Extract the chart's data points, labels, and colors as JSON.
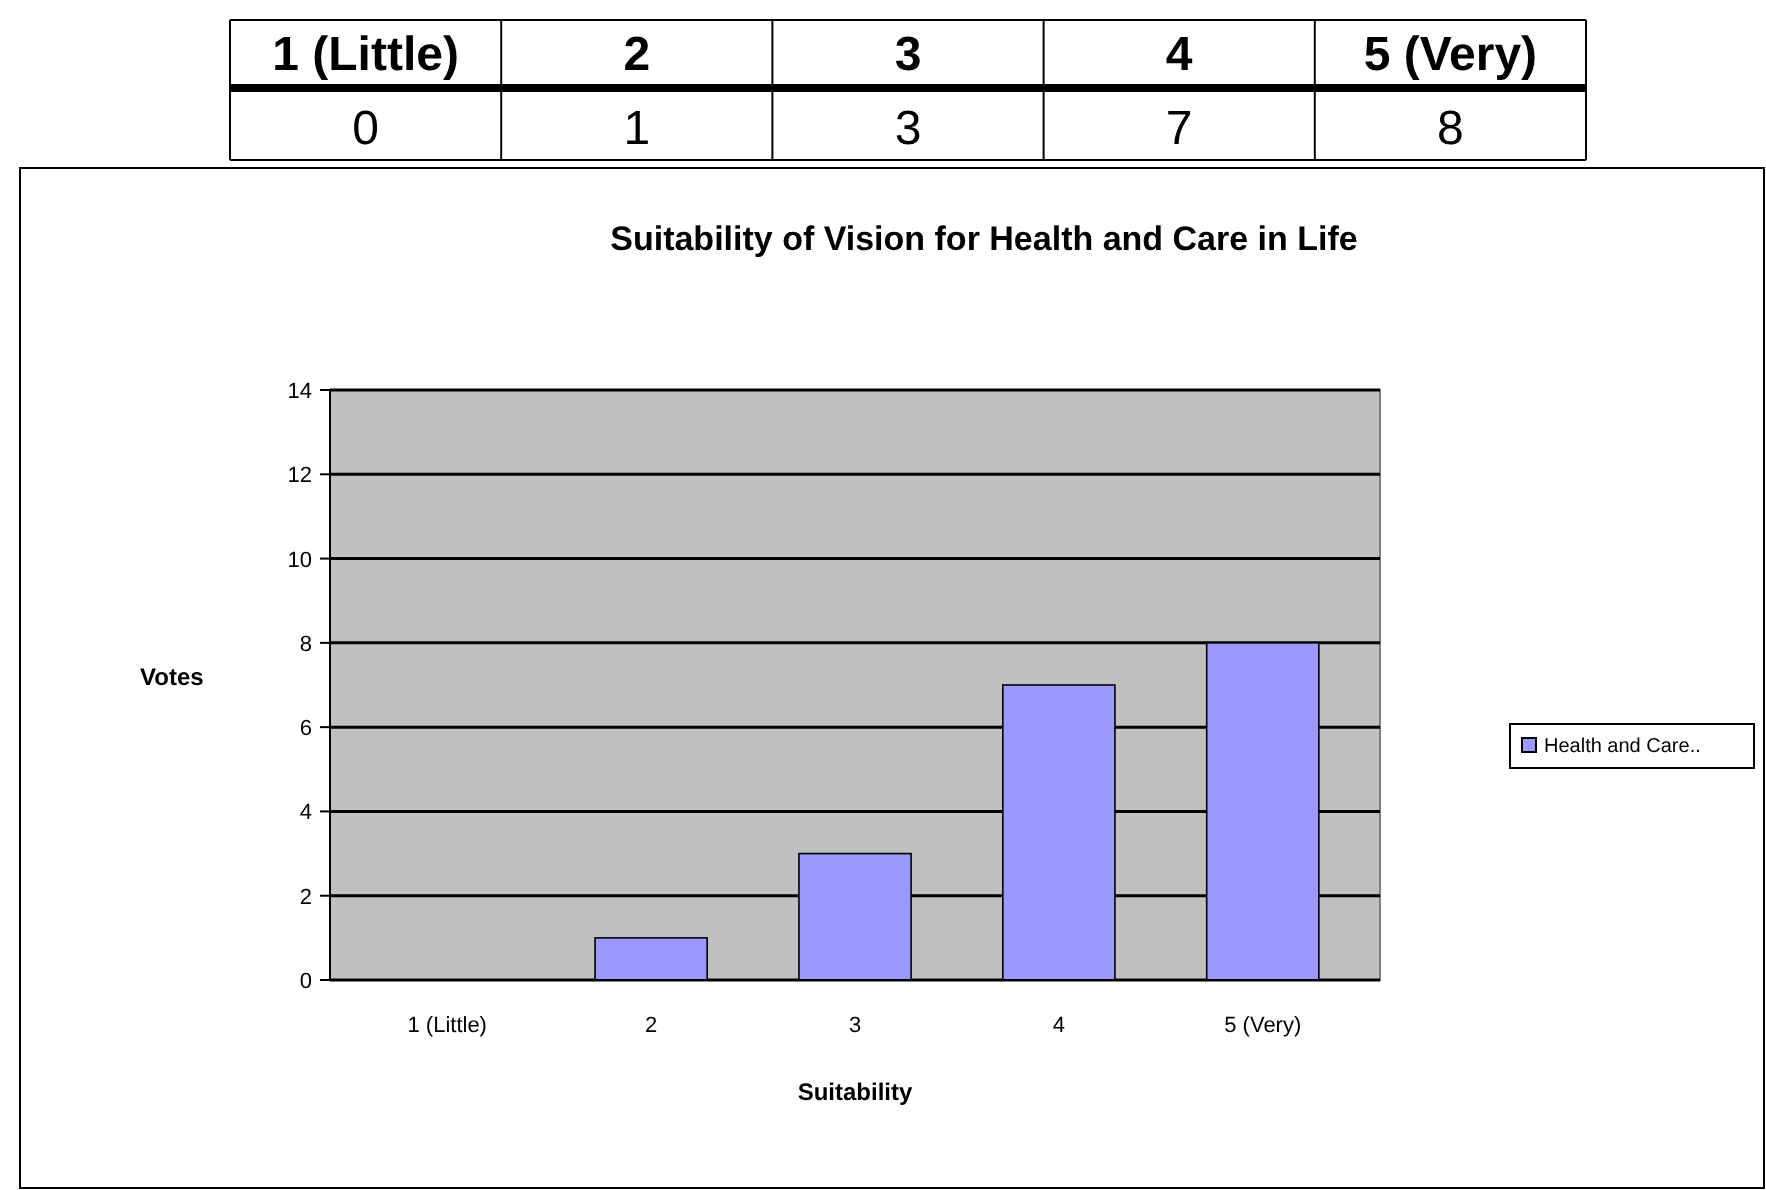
{
  "chart_data": {
    "type": "bar",
    "title": "Suitability of Vision for Health and Care in Life",
    "xlabel": "Suitability",
    "ylabel": "Votes",
    "categories": [
      "1 (Little)",
      "2",
      "3",
      "4",
      "5 (Very)"
    ],
    "series": [
      {
        "name": "Health and Care..",
        "color": "#9999ff",
        "values": [
          0,
          1,
          3,
          7,
          8
        ]
      }
    ],
    "annotations": [
      "0",
      "1",
      "3",
      "7",
      "8"
    ],
    "ylim": [
      0,
      14
    ],
    "yticks": [
      0,
      2,
      4,
      6,
      8,
      10,
      12,
      14
    ],
    "grid": "y",
    "legend": "right"
  }
}
